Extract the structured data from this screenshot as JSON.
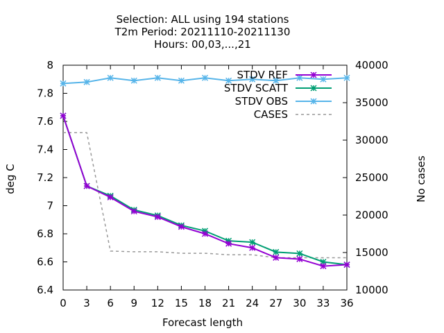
{
  "chart_data": {
    "type": "line",
    "title_lines": [
      "Selection: ALL using   194 stations",
      "T2m   Period: 20211110-20211130",
      "Hours:  00,03,...,21"
    ],
    "xlabel": "Forecast length",
    "ylabel": "deg C",
    "y2label": "No cases",
    "x": [
      0,
      3,
      6,
      9,
      12,
      15,
      18,
      21,
      24,
      27,
      30,
      33,
      36
    ],
    "xlim": [
      0,
      36
    ],
    "ylim": [
      6.4,
      8.0
    ],
    "y2lim": [
      10000,
      40000
    ],
    "x_ticks": [
      "0",
      "3",
      "6",
      "9",
      "12",
      "15",
      "18",
      "21",
      "24",
      "27",
      "30",
      "33",
      "36"
    ],
    "y_ticks": [
      "6.4",
      "6.6",
      "6.8",
      "7",
      "7.2",
      "7.4",
      "7.6",
      "7.8",
      "8"
    ],
    "y2_ticks": [
      "10000",
      "15000",
      "20000",
      "25000",
      "30000",
      "35000",
      "40000"
    ],
    "legend_position": "top-right",
    "grid": false,
    "series": [
      {
        "name": "STDV REF",
        "axis": "left",
        "color": "#9400d3",
        "style": "line-points",
        "values": [
          7.64,
          7.14,
          7.06,
          6.96,
          6.92,
          6.85,
          6.8,
          6.73,
          6.7,
          6.63,
          6.62,
          6.57,
          6.58
        ]
      },
      {
        "name": "STDV SCATT",
        "axis": "left",
        "color": "#009e73",
        "style": "line-points",
        "values": [
          7.64,
          7.14,
          7.07,
          6.97,
          6.93,
          6.86,
          6.82,
          6.75,
          6.74,
          6.67,
          6.66,
          6.6,
          6.58
        ]
      },
      {
        "name": "STDV OBS",
        "axis": "left",
        "color": "#56b4e9",
        "style": "line-points",
        "values": [
          7.87,
          7.88,
          7.91,
          7.89,
          7.91,
          7.89,
          7.91,
          7.89,
          7.9,
          7.89,
          7.91,
          7.9,
          7.91
        ]
      },
      {
        "name": "CASES",
        "axis": "right",
        "color": "#999999",
        "style": "dashed",
        "values": [
          31000,
          31000,
          15200,
          15100,
          15100,
          14900,
          14900,
          14700,
          14700,
          14300,
          14300,
          14300,
          14300
        ]
      }
    ]
  }
}
